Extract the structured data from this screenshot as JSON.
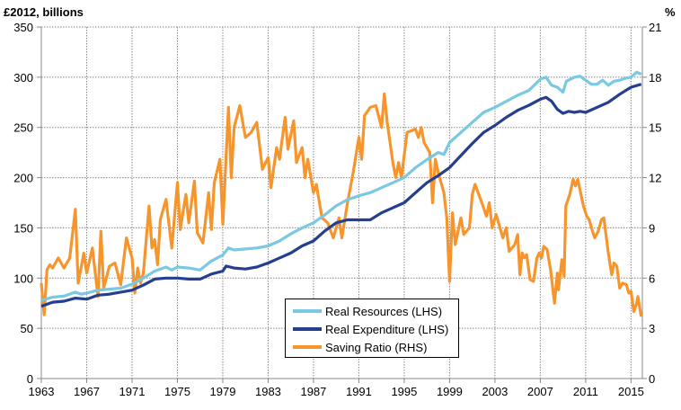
{
  "chart_data": {
    "type": "line",
    "left_axis_label": "£2012, billions",
    "right_axis_label": "%",
    "xlim": [
      1963,
      2016
    ],
    "ylim_left": [
      0,
      350
    ],
    "ylim_right": [
      0,
      21
    ],
    "grid": true,
    "legend_placement": "bottom-center",
    "x_ticks": [
      "1963",
      "1967",
      "1971",
      "1975",
      "1979",
      "1983",
      "1987",
      "1991",
      "1995",
      "1999",
      "2003",
      "2007",
      "2011",
      "2015"
    ],
    "y_ticks_left": [
      "0",
      "50",
      "100",
      "150",
      "200",
      "250",
      "300",
      "350"
    ],
    "y_ticks_right": [
      "0",
      "3",
      "6",
      "9",
      "12",
      "15",
      "18",
      "21"
    ],
    "series": [
      {
        "name": "Real Resources (LHS)",
        "axis": "left",
        "color": "#7ac8e2",
        "points": [
          [
            1963,
            78
          ],
          [
            1964,
            81
          ],
          [
            1965,
            82
          ],
          [
            1966,
            86
          ],
          [
            1966.5,
            84
          ],
          [
            1967,
            85
          ],
          [
            1968,
            88
          ],
          [
            1969,
            89
          ],
          [
            1970,
            90
          ],
          [
            1971,
            94
          ],
          [
            1972,
            100
          ],
          [
            1973,
            107
          ],
          [
            1974,
            111
          ],
          [
            1974.5,
            108
          ],
          [
            1975,
            111
          ],
          [
            1976,
            110
          ],
          [
            1977,
            108
          ],
          [
            1978,
            117
          ],
          [
            1979,
            123
          ],
          [
            1979.5,
            130
          ],
          [
            1980,
            128
          ],
          [
            1981,
            129
          ],
          [
            1982,
            130
          ],
          [
            1983,
            132
          ],
          [
            1984,
            137
          ],
          [
            1985,
            144
          ],
          [
            1986,
            150
          ],
          [
            1987,
            155
          ],
          [
            1988,
            163
          ],
          [
            1989,
            172
          ],
          [
            1990,
            178
          ],
          [
            1991,
            182
          ],
          [
            1992,
            185
          ],
          [
            1993,
            190
          ],
          [
            1994,
            195
          ],
          [
            1995,
            200
          ],
          [
            1996,
            210
          ],
          [
            1997,
            218
          ],
          [
            1998,
            225
          ],
          [
            1998.5,
            223
          ],
          [
            1999,
            235
          ],
          [
            2000,
            245
          ],
          [
            2001,
            255
          ],
          [
            2002,
            265
          ],
          [
            2003,
            270
          ],
          [
            2004,
            276
          ],
          [
            2005,
            282
          ],
          [
            2006,
            287
          ],
          [
            2007,
            298
          ],
          [
            2007.5,
            300
          ],
          [
            2008,
            292
          ],
          [
            2008.5,
            290
          ],
          [
            2009,
            285
          ],
          [
            2009.3,
            296
          ],
          [
            2010,
            300
          ],
          [
            2010.5,
            301
          ],
          [
            2011,
            297
          ],
          [
            2011.5,
            293
          ],
          [
            2012,
            293
          ],
          [
            2012.5,
            297
          ],
          [
            2013,
            292
          ],
          [
            2013.5,
            296
          ],
          [
            2014,
            297
          ],
          [
            2014.5,
            299
          ],
          [
            2015,
            300
          ],
          [
            2015.5,
            305
          ],
          [
            2015.9,
            303
          ]
        ]
      },
      {
        "name": "Real Expenditure (LHS)",
        "axis": "left",
        "color": "#253e8f",
        "points": [
          [
            1963,
            72
          ],
          [
            1964,
            76
          ],
          [
            1965,
            77
          ],
          [
            1966,
            80
          ],
          [
            1967,
            79
          ],
          [
            1968,
            83
          ],
          [
            1969,
            84
          ],
          [
            1970,
            86
          ],
          [
            1971,
            88
          ],
          [
            1972,
            93
          ],
          [
            1973,
            99
          ],
          [
            1974,
            100
          ],
          [
            1975,
            100
          ],
          [
            1976,
            99
          ],
          [
            1977,
            99
          ],
          [
            1978,
            104
          ],
          [
            1979,
            107
          ],
          [
            1979.3,
            112
          ],
          [
            1980,
            110
          ],
          [
            1981,
            109
          ],
          [
            1982,
            111
          ],
          [
            1983,
            115
          ],
          [
            1984,
            120
          ],
          [
            1985,
            125
          ],
          [
            1986,
            132
          ],
          [
            1987,
            137
          ],
          [
            1988,
            147
          ],
          [
            1989,
            155
          ],
          [
            1990,
            158
          ],
          [
            1991,
            158
          ],
          [
            1992,
            158
          ],
          [
            1993,
            165
          ],
          [
            1994,
            170
          ],
          [
            1995,
            175
          ],
          [
            1996,
            185
          ],
          [
            1997,
            195
          ],
          [
            1998,
            202
          ],
          [
            1999,
            210
          ],
          [
            2000,
            222
          ],
          [
            2001,
            234
          ],
          [
            2002,
            245
          ],
          [
            2003,
            252
          ],
          [
            2004,
            260
          ],
          [
            2005,
            267
          ],
          [
            2006,
            272
          ],
          [
            2007,
            278
          ],
          [
            2007.5,
            280
          ],
          [
            2008,
            276
          ],
          [
            2008.5,
            268
          ],
          [
            2009,
            264
          ],
          [
            2009.5,
            266
          ],
          [
            2010,
            265
          ],
          [
            2010.5,
            266
          ],
          [
            2011,
            265
          ],
          [
            2012,
            270
          ],
          [
            2013,
            275
          ],
          [
            2014,
            283
          ],
          [
            2015,
            290
          ],
          [
            2015.9,
            293
          ]
        ]
      },
      {
        "name": "Saving Ratio (RHS)",
        "axis": "right",
        "color": "#f7952d",
        "points": [
          [
            1963,
            5.7
          ],
          [
            1963.25,
            3.8
          ],
          [
            1963.5,
            6.5
          ],
          [
            1963.75,
            6.8
          ],
          [
            1964,
            6.6
          ],
          [
            1964.5,
            7.2
          ],
          [
            1965,
            6.6
          ],
          [
            1965.5,
            7.2
          ],
          [
            1966,
            10.1
          ],
          [
            1966.25,
            5.7
          ],
          [
            1966.75,
            7.5
          ],
          [
            1967,
            6.3
          ],
          [
            1967.5,
            7.8
          ],
          [
            1968,
            4.9
          ],
          [
            1968.25,
            8.8
          ],
          [
            1968.5,
            5.4
          ],
          [
            1969,
            6.7
          ],
          [
            1969.5,
            6.9
          ],
          [
            1970,
            5.6
          ],
          [
            1970.5,
            8.4
          ],
          [
            1971,
            7.2
          ],
          [
            1971.25,
            5.1
          ],
          [
            1971.5,
            6.6
          ],
          [
            1971.75,
            5.7
          ],
          [
            1972,
            6.3
          ],
          [
            1972.5,
            10.3
          ],
          [
            1972.75,
            7.8
          ],
          [
            1973,
            8.3
          ],
          [
            1973.25,
            6.8
          ],
          [
            1973.5,
            9.5
          ],
          [
            1974,
            10.7
          ],
          [
            1974.5,
            7.8
          ],
          [
            1975,
            11.7
          ],
          [
            1975.25,
            8.9
          ],
          [
            1975.75,
            11
          ],
          [
            1976,
            9.3
          ],
          [
            1976.5,
            11.8
          ],
          [
            1976.75,
            8.7
          ],
          [
            1977.25,
            8.1
          ],
          [
            1977.75,
            11.1
          ],
          [
            1978,
            8.9
          ],
          [
            1978.25,
            11.7
          ],
          [
            1978.75,
            13.1
          ],
          [
            1979,
            9.2
          ],
          [
            1979.5,
            16.2
          ],
          [
            1979.75,
            12
          ],
          [
            1980,
            15
          ],
          [
            1980.5,
            16.3
          ],
          [
            1981,
            14.4
          ],
          [
            1981.5,
            14.7
          ],
          [
            1982,
            15.3
          ],
          [
            1982.5,
            12.5
          ],
          [
            1983,
            13.2
          ],
          [
            1983.25,
            11.4
          ],
          [
            1983.75,
            13.8
          ],
          [
            1984,
            13.1
          ],
          [
            1984.5,
            15.6
          ],
          [
            1984.75,
            13.7
          ],
          [
            1985.25,
            15.4
          ],
          [
            1985.5,
            12.9
          ],
          [
            1986,
            13.8
          ],
          [
            1986.25,
            12
          ],
          [
            1986.5,
            13.1
          ],
          [
            1987,
            11.1
          ],
          [
            1987.25,
            11.6
          ],
          [
            1987.75,
            9.6
          ],
          [
            1988.25,
            9.3
          ],
          [
            1988.75,
            8.4
          ],
          [
            1989.25,
            9.6
          ],
          [
            1989.5,
            8.4
          ],
          [
            1990,
            10.5
          ],
          [
            1990.5,
            12.3
          ],
          [
            1991,
            14.4
          ],
          [
            1991.25,
            13.1
          ],
          [
            1991.5,
            15.7
          ],
          [
            1992,
            16.2
          ],
          [
            1992.5,
            16.3
          ],
          [
            1993,
            15
          ],
          [
            1993.25,
            17
          ],
          [
            1993.5,
            15.3
          ],
          [
            1994,
            12.9
          ],
          [
            1994.25,
            12
          ],
          [
            1994.5,
            12.9
          ],
          [
            1994.75,
            12
          ],
          [
            1995.25,
            14.7
          ],
          [
            1996,
            14.9
          ],
          [
            1996.25,
            14.4
          ],
          [
            1996.5,
            15
          ],
          [
            1996.75,
            14.1
          ],
          [
            1997.25,
            13.5
          ],
          [
            1997.5,
            10.5
          ],
          [
            1997.75,
            13.1
          ],
          [
            1998,
            12.3
          ],
          [
            1998.5,
            11.1
          ],
          [
            1998.75,
            9.6
          ],
          [
            1999,
            5.8
          ],
          [
            1999.25,
            9.9
          ],
          [
            1999.5,
            8
          ],
          [
            2000,
            9.6
          ],
          [
            2000.25,
            8.6
          ],
          [
            2000.75,
            9
          ],
          [
            2001,
            11
          ],
          [
            2001.25,
            11.6
          ],
          [
            2002,
            10.2
          ],
          [
            2002.25,
            9.7
          ],
          [
            2002.5,
            10.5
          ],
          [
            2002.75,
            9
          ],
          [
            2003.1,
            9.8
          ],
          [
            2003.7,
            8.4
          ],
          [
            2004,
            9
          ],
          [
            2004.25,
            7.6
          ],
          [
            2004.75,
            8
          ],
          [
            2005,
            8.6
          ],
          [
            2005.2,
            6.2
          ],
          [
            2005.4,
            7.5
          ],
          [
            2005.6,
            7.2
          ],
          [
            2005.8,
            7.4
          ],
          [
            2006.1,
            5.9
          ],
          [
            2006.4,
            5.8
          ],
          [
            2006.7,
            7.2
          ],
          [
            2006.9,
            7.5
          ],
          [
            2007.1,
            7.2
          ],
          [
            2007.3,
            7.9
          ],
          [
            2007.6,
            7.7
          ],
          [
            2007.9,
            6.5
          ],
          [
            2008.25,
            4.5
          ],
          [
            2008.5,
            6.3
          ],
          [
            2008.6,
            5.3
          ],
          [
            2008.9,
            7.1
          ],
          [
            2009.1,
            6.1
          ],
          [
            2009.25,
            10.3
          ],
          [
            2009.6,
            11
          ],
          [
            2009.9,
            11.9
          ],
          [
            2010.1,
            11.5
          ],
          [
            2010.3,
            11.9
          ],
          [
            2010.8,
            10.3
          ],
          [
            2011.1,
            9.7
          ],
          [
            2011.3,
            9.5
          ],
          [
            2011.6,
            8.8
          ],
          [
            2011.8,
            8.4
          ],
          [
            2012.1,
            8.8
          ],
          [
            2012.4,
            9.5
          ],
          [
            2012.6,
            9.6
          ],
          [
            2013,
            7.5
          ],
          [
            2013.3,
            6.2
          ],
          [
            2013.5,
            6.9
          ],
          [
            2013.75,
            6.7
          ],
          [
            2014,
            5.4
          ],
          [
            2014.25,
            5.7
          ],
          [
            2014.6,
            5.6
          ],
          [
            2014.8,
            5.1
          ],
          [
            2015,
            5.2
          ],
          [
            2015.25,
            4
          ],
          [
            2015.5,
            4.5
          ],
          [
            2015.6,
            4.9
          ],
          [
            2015.9,
            3.7
          ]
        ]
      }
    ]
  }
}
